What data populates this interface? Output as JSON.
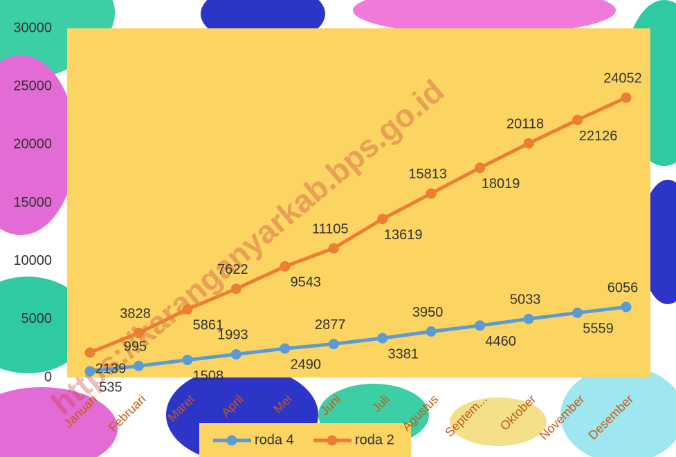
{
  "chart_data": {
    "type": "line",
    "categories": [
      "Januari",
      "Februari",
      "Maret",
      "April",
      "Mei",
      "Juni",
      "Juli",
      "Agustus",
      "Septem...",
      "Oktober",
      "November",
      "Desember"
    ],
    "series": [
      {
        "name": "roda 4",
        "color": "#5b9bd5",
        "values": [
          535,
          995,
          1508,
          1993,
          2490,
          2877,
          3381,
          3950,
          4460,
          5033,
          5559,
          6056
        ]
      },
      {
        "name": "roda 2",
        "color": "#ed7d31",
        "values": [
          2139,
          3828,
          5861,
          7622,
          9543,
          11105,
          13619,
          15813,
          18019,
          20118,
          22126,
          24052
        ]
      }
    ],
    "ylim": [
      0,
      30000
    ],
    "yticks": [
      0,
      5000,
      10000,
      15000,
      20000,
      25000,
      30000
    ],
    "legend": "bottom",
    "plot_background": "#fbd462",
    "watermark": "https://karanganyarkab.bps.go.id"
  }
}
